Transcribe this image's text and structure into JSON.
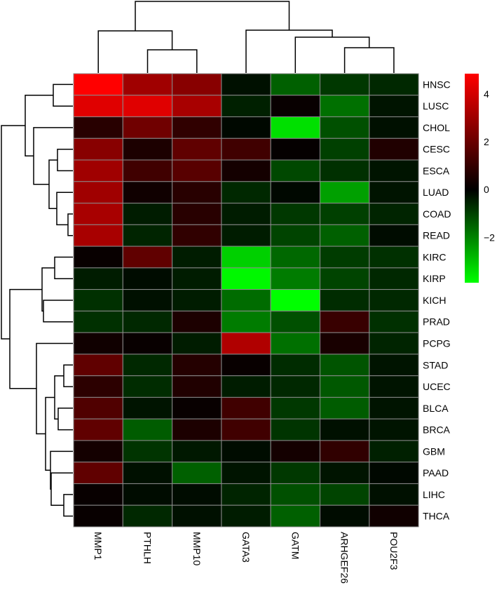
{
  "chart_data": {
    "type": "heatmap",
    "title": "",
    "xlabel": "",
    "ylabel": "",
    "columns": [
      "MMP1",
      "PTHLH",
      "MMP10",
      "GATA3",
      "GATM",
      "ARHGEF26",
      "POU2F3"
    ],
    "rows": [
      "HNSC",
      "LUSC",
      "CHOL",
      "CESC",
      "ESCA",
      "LUAD",
      "COAD",
      "READ",
      "KIRC",
      "KIRP",
      "KICH",
      "PRAD",
      "PCPG",
      "STAD",
      "UCEC",
      "BLCA",
      "BRCA",
      "GBM",
      "PAAD",
      "LIHC",
      "THCA"
    ],
    "values": [
      [
        4.85,
        3.04,
        2.59,
        -0.24,
        -1.47,
        -0.86,
        -0.61
      ],
      [
        4.26,
        4.26,
        3.2,
        -0.49,
        0.15,
        -1.71,
        -0.3
      ],
      [
        0.76,
        2.13,
        0.91,
        -0.12,
        -3.43,
        -1.22,
        -0.24
      ],
      [
        2.59,
        0.53,
        1.83,
        1.22,
        0.1,
        -0.98,
        0.61
      ],
      [
        3.04,
        1.22,
        1.67,
        0.38,
        -1.1,
        -0.73,
        -0.3
      ],
      [
        3.04,
        0.3,
        0.76,
        -0.61,
        -0.12,
        -2.45,
        -0.3
      ],
      [
        3.2,
        -0.43,
        0.76,
        -0.43,
        -0.86,
        -0.98,
        -0.55
      ],
      [
        3.2,
        -0.55,
        0.91,
        -0.43,
        -1.04,
        -1.47,
        -0.18
      ],
      [
        0.15,
        1.83,
        -0.43,
        -3.18,
        -1.59,
        -0.92,
        -0.73
      ],
      [
        -0.43,
        -0.18,
        -0.43,
        -3.8,
        -1.9,
        -1.04,
        -0.61
      ],
      [
        -0.73,
        -0.24,
        -0.43,
        -1.65,
        -3.9,
        -0.67,
        -0.61
      ],
      [
        -0.73,
        -0.61,
        0.53,
        -1.9,
        -1.22,
        1.06,
        -0.73
      ],
      [
        0.3,
        0.15,
        -0.43,
        3.35,
        -1.71,
        0.46,
        -0.55
      ],
      [
        1.83,
        -0.61,
        0.68,
        0.15,
        -0.67,
        -1.28,
        -0.3
      ],
      [
        0.84,
        -0.67,
        0.61,
        -0.43,
        -0.61,
        -1.35,
        -0.3
      ],
      [
        1.52,
        -0.3,
        0.15,
        1.22,
        -0.86,
        -1.41,
        -0.3
      ],
      [
        1.83,
        -1.41,
        0.53,
        1.22,
        -0.8,
        -0.24,
        -0.3
      ],
      [
        0.38,
        -0.8,
        -0.37,
        -0.18,
        0.38,
        0.91,
        -0.49
      ],
      [
        1.83,
        -0.24,
        -1.47,
        -0.3,
        -0.86,
        -0.3,
        -0.12
      ],
      [
        0.15,
        -0.18,
        -0.18,
        -0.55,
        -1.22,
        -1.04,
        -0.24
      ],
      [
        0.15,
        -0.61,
        -0.24,
        -0.43,
        -1.47,
        -0.18,
        0.3
      ]
    ],
    "color_scale": {
      "range": [
        -3.9,
        4.85
      ],
      "low_color": "#00ff00",
      "mid_color": "#000000",
      "high_color": "#ff0000",
      "ticks": [
        4,
        2,
        0,
        -2
      ],
      "tick_labels": [
        "4",
        "2",
        "0",
        "−2"
      ]
    },
    "legend_position": "right",
    "row_dendrogram": true,
    "column_dendrogram": true,
    "grid_color": "#8c8c8c"
  }
}
